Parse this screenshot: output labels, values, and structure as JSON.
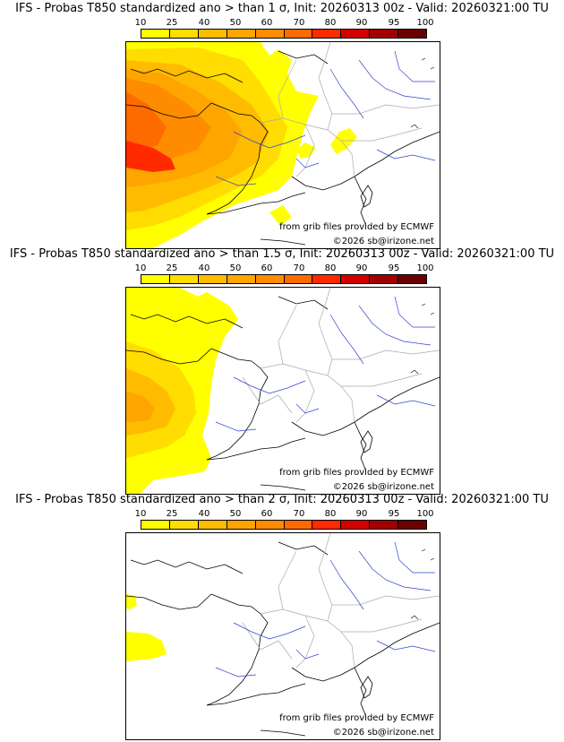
{
  "colorbar": {
    "ticks": [
      "10",
      "25",
      "40",
      "50",
      "60",
      "70",
      "80",
      "90",
      "95",
      "100"
    ],
    "colors": [
      "#ffff00",
      "#ffdd00",
      "#ffbb00",
      "#ffa500",
      "#ff8c00",
      "#ff6a00",
      "#ff2a00",
      "#d40000",
      "#a00000",
      "#6b0000"
    ]
  },
  "panels": [
    {
      "title": "IFS - Probas T850  standardized ano > than 1 σ, Init: 20260313 00z - Valid: 20260321:00 TU",
      "credit_source": "from grib files provided by ECMWF",
      "credit_copyright": "©2026 sb@irizone.net"
    },
    {
      "title": "IFS - Probas T850  standardized ano > than 1.5 σ, Init: 20260313 00z - Valid: 20260321:00 TU",
      "credit_source": "from grib files provided by ECMWF",
      "credit_copyright": "©2026 sb@irizone.net"
    },
    {
      "title": "IFS - Probas T850  standardized ano > than 2 σ, Init: 20260313 00z - Valid: 20260321:00 TU",
      "credit_source": "from grib files provided by ECMWF",
      "credit_copyright": "©2026 sb@irizone.net"
    }
  ]
}
